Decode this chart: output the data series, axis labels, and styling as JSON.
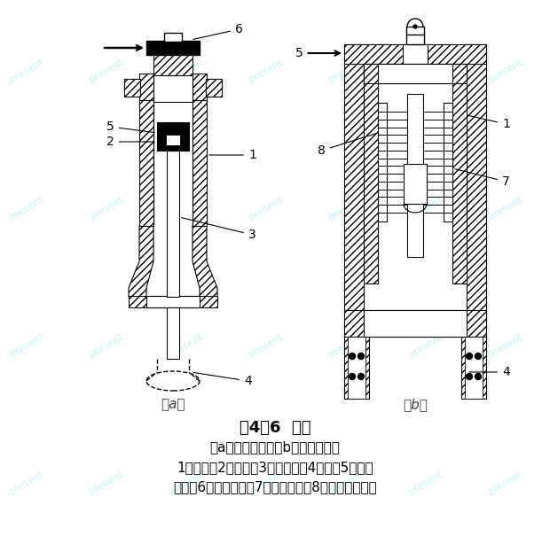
{
  "title": "图4－6  汽锤",
  "subtitle_a": "（a）单动汽锤；（b）双动汽锤；",
  "legend_line1": "1－汽缸；2－活塞；3－活塞杆；4－桩；5－活塞",
  "legend_line2": "上部；6－换向阀门；7－锤的垫座；8－汽缸密封部分",
  "label_a": "（a）",
  "label_b": "（b）",
  "bg_color": "#ffffff",
  "text_color": "#000000",
  "title_fontsize": 13,
  "legend_fontsize": 11,
  "label_fontsize": 11
}
